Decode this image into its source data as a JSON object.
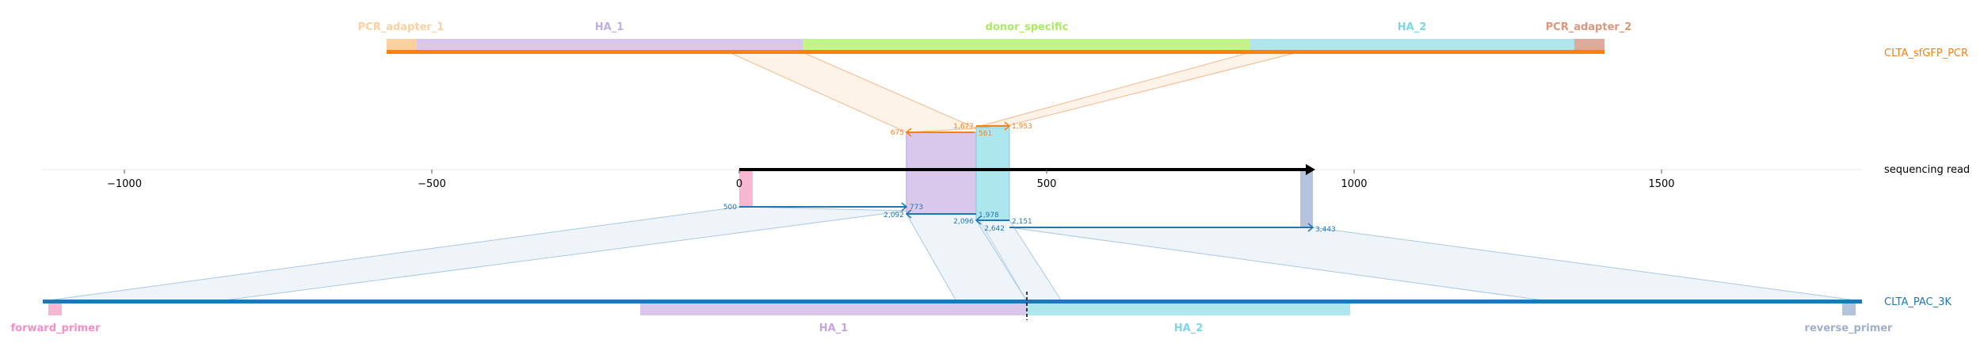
{
  "top_track": {
    "name": "CLTA_sfGFP_PCR",
    "features": [
      {
        "label": "PCR_adapter_1",
        "color": "#fdd0a2"
      },
      {
        "label": "HA_1",
        "color": "#d9c8ec"
      },
      {
        "label": "donor_specific",
        "color": "#c2f589"
      },
      {
        "label": "HA_2",
        "color": "#aee6ee"
      },
      {
        "label": "PCR_adapter_2",
        "color": "#dcab9b"
      }
    ],
    "line_color": "#ff7f0e"
  },
  "read_track": {
    "name": "sequencing read",
    "axis_ticks": [
      "−1000",
      "−500",
      "0",
      "500",
      "1000",
      "1500"
    ],
    "axis_tick_values": [
      -1000,
      -500,
      0,
      500,
      1000,
      1500
    ],
    "top_labels": [
      "675",
      "1,677",
      "1,953",
      "561"
    ],
    "bottom_labels": [
      "500",
      "773",
      "2,092",
      "2,096",
      "1,978",
      "2,151",
      "2,642",
      "3,443"
    ]
  },
  "bottom_track": {
    "name": "CLTA_PAC_3K",
    "features": [
      {
        "label": "forward_primer",
        "color": "#f7b6d2"
      },
      {
        "label": "HA_1",
        "color": "#d9c8ec"
      },
      {
        "label": "HA_2",
        "color": "#aee6ee"
      },
      {
        "label": "reverse_primer",
        "color": "#b5c4de"
      }
    ],
    "line_color": "#1f77b4"
  },
  "colors": {
    "orange": "#ff7f0e",
    "blue": "#1f77b4",
    "label_orange": "#f9ae7a",
    "label_blue": "#4e8fc4"
  }
}
